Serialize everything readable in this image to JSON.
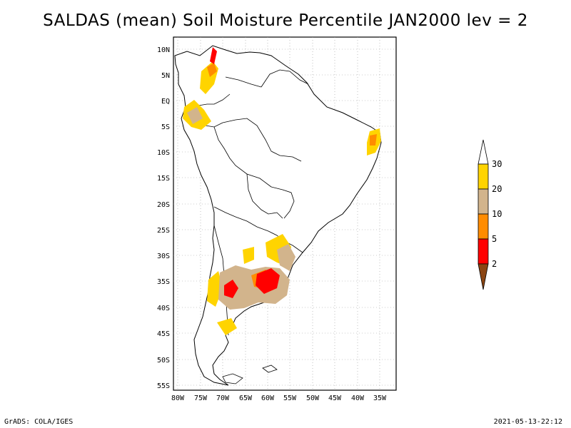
{
  "title": "SALDAS (mean) Soil Moisture Percentile JAN2000 lev = 2",
  "map": {
    "region": "South America",
    "lat_labels": [
      "10N",
      "5N",
      "EQ",
      "5S",
      "10S",
      "15S",
      "20S",
      "25S",
      "30S",
      "35S",
      "40S",
      "45S",
      "50S",
      "55S"
    ],
    "lon_labels": [
      "80W",
      "75W",
      "70W",
      "65W",
      "60W",
      "55W",
      "50W",
      "45W",
      "40W",
      "35W"
    ]
  },
  "legend": {
    "thresholds": [
      "30",
      "20",
      "10",
      "5",
      "2"
    ],
    "colors": {
      "above30": "#ffffff",
      "b20_30": "#ffd400",
      "b10_20": "#d2b48c",
      "b5_10": "#ff8c00",
      "b2_5": "#ff0000",
      "below2": "#8b4513"
    }
  },
  "footer": {
    "left": "GrADS: COLA/IGES",
    "right": "2021-05-13-22:12"
  }
}
